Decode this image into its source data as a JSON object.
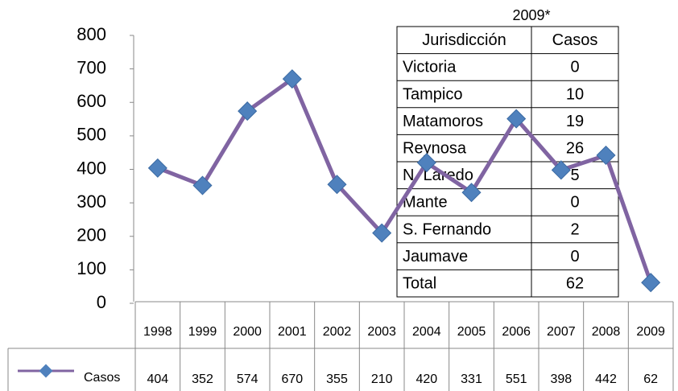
{
  "chart_data": {
    "type": "line",
    "categories": [
      "1998",
      "1999",
      "2000",
      "2001",
      "2002",
      "2003",
      "2004",
      "2005",
      "2006",
      "2007",
      "2008",
      "2009"
    ],
    "series": [
      {
        "name": "Casos",
        "line_color": "#8064a2",
        "marker_color": "#4f81bd",
        "values": [
          404,
          352,
          574,
          670,
          355,
          210,
          420,
          331,
          551,
          398,
          442,
          62
        ]
      }
    ],
    "ylim": [
      0,
      800
    ],
    "yticks": [
      0,
      100,
      200,
      300,
      400,
      500,
      600,
      700,
      800
    ],
    "grid": false
  },
  "table": {
    "title": "2009*",
    "header": [
      "Jurisdicción",
      "Casos"
    ],
    "rows": [
      [
        "Victoria",
        0
      ],
      [
        "Tampico",
        10
      ],
      [
        "Matamoros",
        19
      ],
      [
        "Reynosa",
        26
      ],
      [
        "N. Laredo",
        5
      ],
      [
        "Mante",
        0
      ],
      [
        "S. Fernando",
        2
      ],
      [
        "Jaumave",
        0
      ],
      [
        "Total",
        62
      ]
    ]
  }
}
